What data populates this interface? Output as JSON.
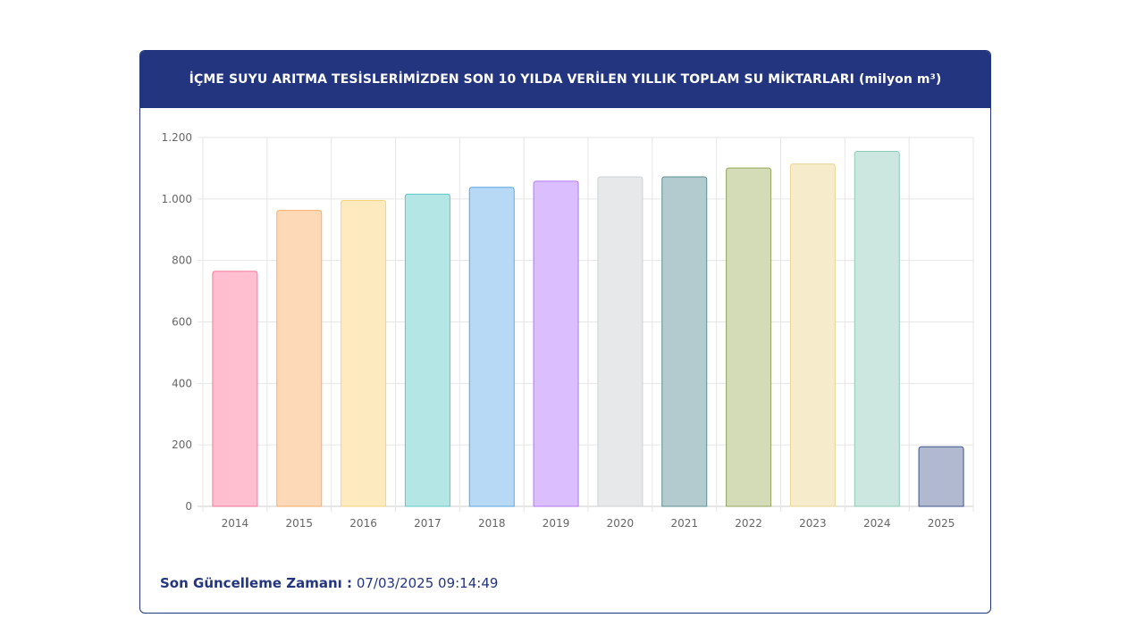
{
  "header": {
    "title": "İÇME SUYU ARITMA TESİSLERİMİZDEN SON 10 YILDA VERİLEN YILLIK TOPLAM SU MİKTARLARI (milyon m³)"
  },
  "footer": {
    "label": "Son Güncelleme Zamanı :",
    "value": "07/03/2025 09:14:49"
  },
  "chart_data": {
    "type": "bar",
    "title": "İÇME SUYU ARITMA TESİSLERİMİZDEN SON 10 YILDA VERİLEN YILLIK TOPLAM SU MİKTARLARI (milyon m³)",
    "xlabel": "",
    "ylabel": "",
    "categories": [
      "2014",
      "2015",
      "2016",
      "2017",
      "2018",
      "2019",
      "2020",
      "2021",
      "2022",
      "2023",
      "2024",
      "2025"
    ],
    "values": [
      765,
      963,
      995,
      1016,
      1038,
      1058,
      1072,
      1072,
      1101,
      1114,
      1155,
      194
    ],
    "ylim": [
      0,
      1200
    ],
    "yticks": [
      0,
      200,
      400,
      600,
      800,
      1000,
      1200
    ],
    "ytick_labels": [
      "0",
      "200",
      "400",
      "600",
      "800",
      "1.000",
      "1.200"
    ],
    "grid": true,
    "colors": {
      "fill": [
        "#ffbfd1",
        "#fed9b7",
        "#feeabf",
        "#b4e6e5",
        "#b7d9f5",
        "#dbbefd",
        "#e7e8ea",
        "#b3cbce",
        "#d4dbb7",
        "#f6ebca",
        "#cce7df",
        "#b1b9d0"
      ],
      "stroke": [
        "#f77a9c",
        "#f9ab6a",
        "#f8d37a",
        "#5cc9c6",
        "#58a6e0",
        "#b579f2",
        "#cfd0d3",
        "#5e8f93",
        "#94a55c",
        "#e8d794",
        "#8ccbb6",
        "#3f5289"
      ]
    }
  }
}
